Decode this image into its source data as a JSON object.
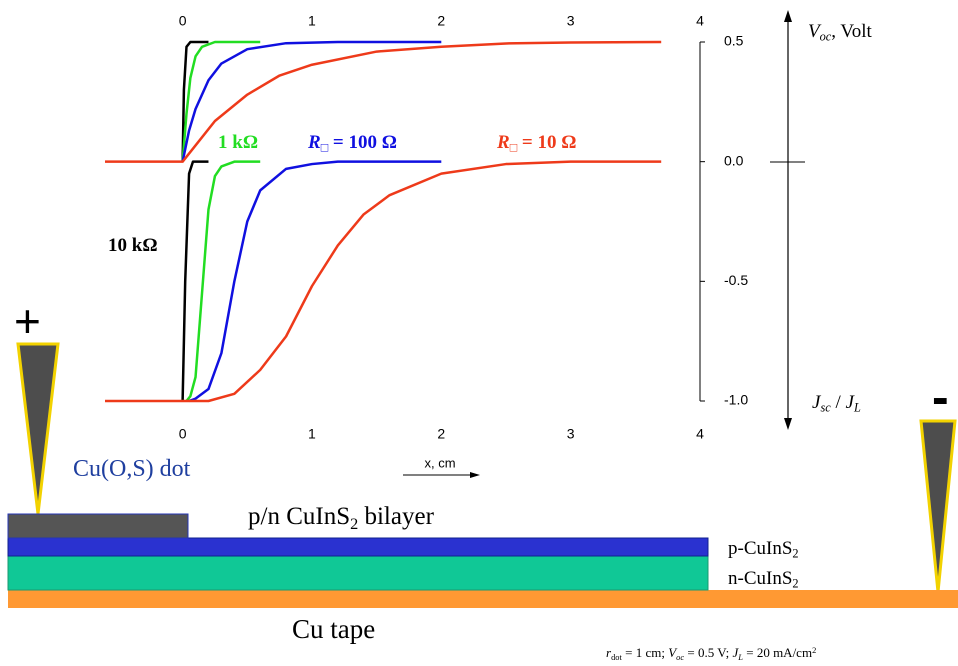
{
  "chart_data": {
    "type": "line",
    "x_label": "x, cm",
    "y_label_top": {
      "var": "V",
      "sub": "oc",
      "text": ", Volt"
    },
    "y_label_bottom": {
      "var1": "J",
      "sub1": "sc",
      "sep": " / ",
      "var2": "J",
      "sub2": "L"
    },
    "xlim": [
      -0.6,
      4
    ],
    "xticks": [
      0,
      1,
      2,
      3,
      4
    ],
    "ylim": [
      -1,
      0.5
    ],
    "yticks": [
      0.5,
      {
        "value": 0,
        "label": "0.0"
      },
      -0.5,
      {
        "value": -1,
        "label": "-1.0"
      }
    ],
    "curves": [
      {
        "label": {
          "text": "10 kΩ"
        },
        "color": "#000000",
        "voc": {
          "x": [
            0,
            0.01,
            0.03,
            0.06,
            0.2
          ],
          "values": [
            0,
            0.3,
            0.48,
            0.5,
            0.5
          ]
        },
        "jsc": {
          "x": [
            0,
            0.02,
            0.05,
            0.08,
            0.2
          ],
          "values": [
            -1,
            -0.5,
            -0.05,
            0,
            0
          ]
        }
      },
      {
        "label": {
          "text": "1 kΩ"
        },
        "color": "#22dd22",
        "voc": {
          "x": [
            0,
            0.03,
            0.06,
            0.1,
            0.15,
            0.25,
            0.6
          ],
          "values": [
            0,
            0.2,
            0.35,
            0.44,
            0.48,
            0.5,
            0.5
          ]
        },
        "jsc": {
          "x": [
            0.03,
            0.06,
            0.1,
            0.15,
            0.2,
            0.25,
            0.3,
            0.4,
            0.6
          ],
          "values": [
            -1,
            -0.98,
            -0.9,
            -0.55,
            -0.2,
            -0.06,
            -0.02,
            0,
            0
          ]
        }
      },
      {
        "label": {
          "var": "R",
          "sub": "□",
          "text": " = 100 Ω"
        },
        "color": "#1010e0",
        "voc": {
          "x": [
            0,
            0.05,
            0.1,
            0.2,
            0.3,
            0.5,
            0.8,
            1.2,
            2
          ],
          "values": [
            0,
            0.13,
            0.22,
            0.34,
            0.41,
            0.47,
            0.495,
            0.5,
            0.5
          ]
        },
        "jsc": {
          "x": [
            0.05,
            0.1,
            0.2,
            0.3,
            0.4,
            0.5,
            0.6,
            0.8,
            1,
            1.2,
            2
          ],
          "values": [
            -1,
            -0.99,
            -0.95,
            -0.8,
            -0.5,
            -0.25,
            -0.12,
            -0.03,
            -0.01,
            0,
            0
          ]
        }
      },
      {
        "label": {
          "var": "R",
          "sub": "□",
          "text": " = 10 Ω"
        },
        "color": "#ee3a1a",
        "voc": {
          "x": [
            -0.6,
            0,
            0.25,
            0.5,
            0.75,
            1,
            1.5,
            2,
            2.5,
            3,
            3.7
          ],
          "values": [
            0,
            0,
            0.17,
            0.28,
            0.36,
            0.405,
            0.46,
            0.48,
            0.494,
            0.498,
            0.5
          ]
        },
        "jsc": {
          "x": [
            -0.6,
            0,
            0.2,
            0.4,
            0.6,
            0.8,
            1,
            1.2,
            1.4,
            1.6,
            2,
            2.5,
            3,
            3.7
          ],
          "values": [
            -1,
            -1,
            -1,
            -0.97,
            -0.87,
            -0.73,
            -0.52,
            -0.35,
            -0.22,
            -0.14,
            -0.05,
            -0.01,
            0,
            0
          ]
        }
      }
    ]
  },
  "diagram": {
    "plus": "+",
    "minus": "-",
    "dot_label": "Cu(O,S) dot",
    "bilayer_label": {
      "text": "p/n CuInS",
      "sub": "2",
      "rest": " bilayer"
    },
    "p_layer": {
      "text": "p-CuInS",
      "sub": "2"
    },
    "n_layer": {
      "text": "n-CuInS",
      "sub": "2"
    },
    "tape_label": "Cu tape",
    "footnote": [
      "r",
      "dot",
      " = 1 cm; ",
      "V",
      "oc",
      " = 0.5 V; ",
      "J",
      "L",
      " = 20 mA/cm",
      "2"
    ]
  }
}
